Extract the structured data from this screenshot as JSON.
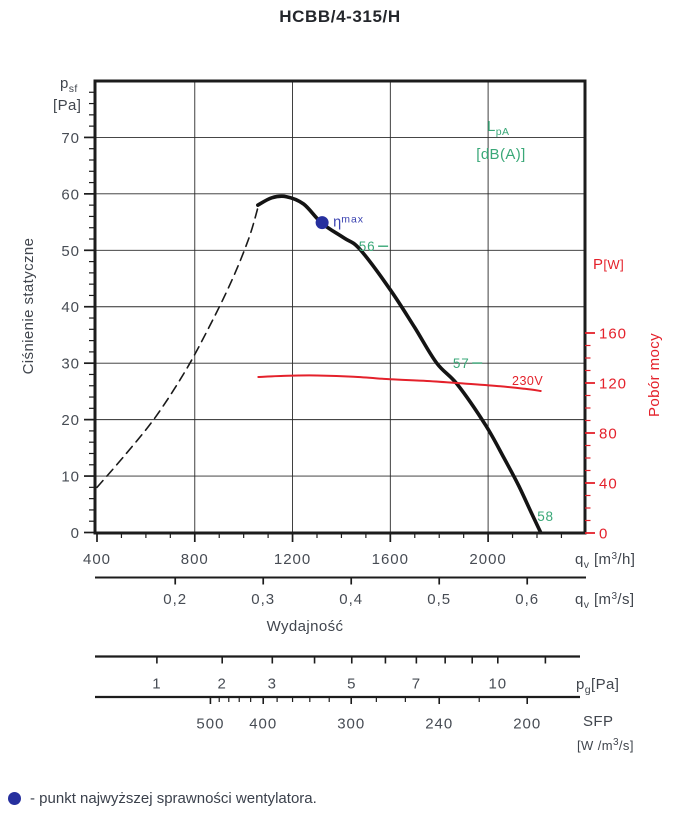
{
  "colors": {
    "curve_black": "#1a1a1a",
    "power_red": "#e4212b",
    "noise_green": "#3aa878",
    "eta_blue": "#262f9e",
    "text_dark": "#40454d"
  },
  "legend": {
    "text": "- punkt najwyższej sprawności wentylatora."
  },
  "chart_data": {
    "type": "line",
    "title": "HCBB/4-315/H",
    "axes": {
      "y_left": {
        "sym": "p",
        "sym_sub": "sf",
        "unit": "[Pa]",
        "axis_name": "Ciśnienie statyczne",
        "ticks": [
          0,
          10,
          20,
          30,
          40,
          50,
          60,
          70
        ],
        "minor_step": 2,
        "range": [
          0,
          80
        ],
        "grid": true
      },
      "y_right": {
        "sym": "P",
        "unit": "[W]",
        "axis_name": "Pobór mocy",
        "ticks": [
          0,
          40,
          80,
          120,
          160
        ],
        "minor_step": 10,
        "range": [
          0,
          160
        ]
      },
      "x": {
        "sym": "q",
        "sym_sub": "v",
        "unit_h_pre": " [m",
        "unit_h_sup": "3",
        "unit_h_post": "/h]",
        "unit_s_pre": " [m",
        "unit_s_sup": "3",
        "unit_s_post": "/s]",
        "axis_name": "Wydajność",
        "ticks_h": [
          400,
          800,
          1200,
          1600,
          2000
        ],
        "minor_step_h": 100,
        "minor_max_h": 2300,
        "range_h": [
          400,
          2404
        ],
        "ticks_s": [
          "0,2",
          "0,3",
          "0,4",
          "0,5",
          "0,6"
        ],
        "grid": true
      }
    },
    "series": [
      {
        "name": "charakterystyka ciśnienia - zakres niestabilny (linia przerywana)",
        "axis": "left",
        "style": "dashed",
        "color": "#1a1a1a",
        "width": 1.6,
        "points": [
          [
            400,
            8
          ],
          [
            520,
            14
          ],
          [
            640,
            20.5
          ],
          [
            760,
            28.5
          ],
          [
            860,
            36.5
          ],
          [
            950,
            44.5
          ],
          [
            1020,
            52
          ],
          [
            1058,
            57.5
          ]
        ]
      },
      {
        "name": "charakterystyka ciśnienia statycznego",
        "axis": "left",
        "style": "solid",
        "color": "#141414",
        "width": 3.6,
        "points": [
          [
            1058,
            58
          ],
          [
            1115,
            59.3
          ],
          [
            1175,
            59.5
          ],
          [
            1245,
            58.2
          ],
          [
            1320,
            54.8
          ],
          [
            1410,
            52.2
          ],
          [
            1475,
            50.2
          ],
          [
            1600,
            43
          ],
          [
            1700,
            36.3
          ],
          [
            1790,
            30
          ],
          [
            1875,
            26.2
          ],
          [
            1990,
            19
          ],
          [
            2065,
            13.2
          ],
          [
            2125,
            8.3
          ],
          [
            2180,
            3.2
          ],
          [
            2215,
            0
          ]
        ]
      },
      {
        "name": "pobór mocy 230V",
        "label": "230V",
        "axis": "right",
        "style": "solid",
        "color": "#e4212b",
        "width": 2,
        "points": [
          [
            1060,
            124.8
          ],
          [
            1180,
            125.8
          ],
          [
            1300,
            126
          ],
          [
            1450,
            125
          ],
          [
            1600,
            123
          ],
          [
            1750,
            121.6
          ],
          [
            1900,
            119.6
          ],
          [
            2050,
            117.4
          ],
          [
            2150,
            115.4
          ],
          [
            2215,
            113.6
          ]
        ]
      }
    ],
    "noise_scale": {
      "sym": "L",
      "sym_sub": "pA",
      "unit": "[dB(A)]",
      "points": [
        {
          "label": "56",
          "q": 1505,
          "p": 50.9,
          "dash": true
        },
        {
          "label": "57",
          "q": 1890,
          "p": 30.2,
          "dash": true
        },
        {
          "label": "58",
          "q": 2235,
          "p": 3.1,
          "dash": false
        }
      ]
    },
    "eta_max": {
      "q": 1321,
      "p": 54.9,
      "sym": "η",
      "sup": "max"
    },
    "pg_scale": {
      "sym": "p",
      "sym_sub": "g",
      "unit": "[Pa]",
      "ticks": [
        1,
        2,
        3,
        4,
        5,
        6,
        7,
        8,
        9,
        10,
        12
      ],
      "labeled": [
        1,
        2,
        3,
        5,
        7,
        10
      ]
    },
    "sfp_scale": {
      "name": "SFP",
      "unit_pre": "[W /m",
      "unit_sup": "3",
      "unit_post": "/s]",
      "ticks": [
        500,
        480,
        460,
        440,
        420,
        400,
        380,
        360,
        340,
        320,
        300,
        280,
        260,
        240,
        220,
        200
      ],
      "labeled": [
        500,
        400,
        300,
        240,
        200
      ]
    }
  }
}
